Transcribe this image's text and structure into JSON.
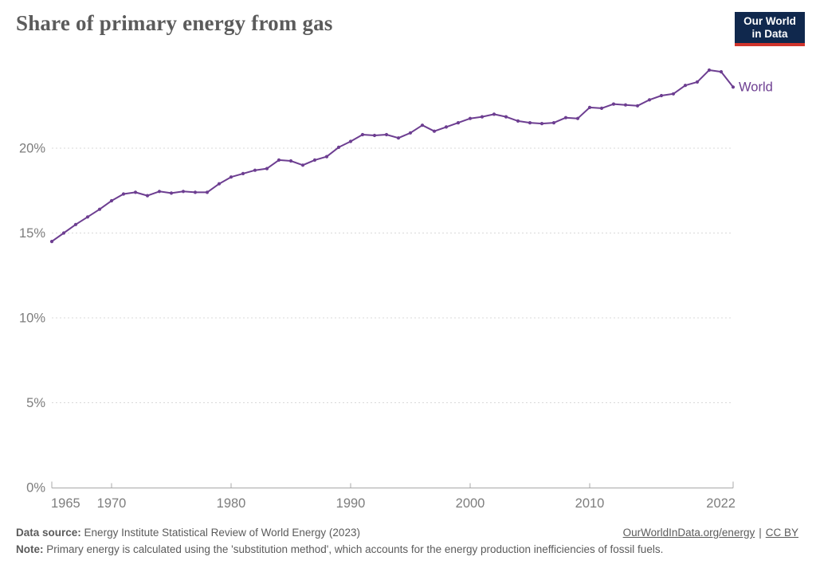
{
  "header": {
    "title": "Share of primary energy from gas"
  },
  "logo": {
    "line1": "Our World",
    "line2": "in Data"
  },
  "chart_data": {
    "type": "line",
    "title": "Share of primary energy from gas",
    "xlabel": "",
    "ylabel": "",
    "xlim": [
      1965,
      2022
    ],
    "ylim": [
      0,
      25
    ],
    "grid": "horizontal-dashed",
    "legend": "inline-end-label",
    "x_ticks": [
      1965,
      1970,
      1980,
      1990,
      2000,
      2010,
      2022
    ],
    "y_ticks": [
      0,
      5,
      10,
      15,
      20
    ],
    "y_tick_suffix": "%",
    "series": [
      {
        "name": "World",
        "color": "#6d3e91",
        "marker": "circle",
        "x": [
          1965,
          1966,
          1967,
          1968,
          1969,
          1970,
          1971,
          1972,
          1973,
          1974,
          1975,
          1976,
          1977,
          1978,
          1979,
          1980,
          1981,
          1982,
          1983,
          1984,
          1985,
          1986,
          1987,
          1988,
          1989,
          1990,
          1991,
          1992,
          1993,
          1994,
          1995,
          1996,
          1997,
          1998,
          1999,
          2000,
          2001,
          2002,
          2003,
          2004,
          2005,
          2006,
          2007,
          2008,
          2009,
          2010,
          2011,
          2012,
          2013,
          2014,
          2015,
          2016,
          2017,
          2018,
          2019,
          2020,
          2021,
          2022
        ],
        "values": [
          14.5,
          15.0,
          15.5,
          15.95,
          16.4,
          16.9,
          17.3,
          17.4,
          17.2,
          17.45,
          17.35,
          17.45,
          17.4,
          17.4,
          17.9,
          18.3,
          18.5,
          18.7,
          18.8,
          19.3,
          19.25,
          19.0,
          19.3,
          19.5,
          20.05,
          20.4,
          20.8,
          20.75,
          20.8,
          20.6,
          20.9,
          21.35,
          21.0,
          21.25,
          21.5,
          21.75,
          21.85,
          22.0,
          21.85,
          21.6,
          21.5,
          21.45,
          21.5,
          21.8,
          21.75,
          22.4,
          22.35,
          22.6,
          22.55,
          22.5,
          22.85,
          23.1,
          23.2,
          23.7,
          23.9,
          24.6,
          24.5,
          23.6
        ]
      }
    ]
  },
  "footer": {
    "source_label": "Data source:",
    "source_text": "Energy Institute Statistical Review of World Energy (2023)",
    "link_text": "OurWorldInData.org/energy",
    "separator": "|",
    "license_text": "CC BY",
    "note_label": "Note:",
    "note_text": "Primary energy is calculated using the 'substitution method', which accounts for the energy production inefficiencies of fossil fuels."
  },
  "colors": {
    "line": "#6d3e91",
    "grid": "#d9d9d9",
    "axis": "#a8a8a8",
    "tick_label": "#7d7d7d",
    "title": "#5b5b5b",
    "footer_text": "#5b5b5b",
    "logo_bg": "#10284d",
    "logo_accent": "#d0342c"
  }
}
